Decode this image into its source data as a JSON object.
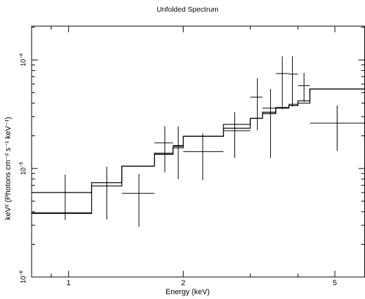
{
  "chart_data": {
    "type": "scatter",
    "title": "Unfolded Spectrum",
    "xlabel": "Energy (keV)",
    "ylabel": "keV² (Photons cm⁻² s⁻¹ keV⁻¹)",
    "xscale": "log",
    "yscale": "log",
    "xlim": [
      0.8,
      6.0
    ],
    "ylim": [
      1e-06,
      0.000205
    ],
    "xticks": [
      {
        "value": 1,
        "label": "1"
      },
      {
        "value": 2,
        "label": "2"
      },
      {
        "value": 5,
        "label": "5"
      }
    ],
    "yticks": [
      {
        "value": 1e-06,
        "base": "10",
        "exp": "−6"
      },
      {
        "value": 1e-05,
        "base": "10",
        "exp": "−5"
      },
      {
        "value": 0.0001,
        "base": "10",
        "exp": "−4"
      }
    ],
    "grid": false,
    "series": [
      {
        "kind": "errorbars",
        "points": [
          {
            "xlo": 0.8,
            "x": 0.98,
            "xhi": 1.15,
            "y": 3.9e-06,
            "ylo": 3.35e-06,
            "yhi": 8.8e-06
          },
          {
            "xlo": 1.15,
            "x": 1.26,
            "xhi": 1.38,
            "y": 6.9e-06,
            "ylo": 3.4e-06,
            "yhi": 1.04e-05
          },
          {
            "xlo": 1.38,
            "x": 1.53,
            "xhi": 1.68,
            "y": 5.9e-06,
            "ylo": 2.9e-06,
            "yhi": 8.9e-06
          },
          {
            "xlo": 1.68,
            "x": 1.79,
            "xhi": 1.88,
            "y": 1.72e-05,
            "ylo": 9.2e-06,
            "yhi": 2.45e-05
          },
          {
            "xlo": 1.88,
            "x": 1.94,
            "xhi": 2.0,
            "y": 1.63e-05,
            "ylo": 8e-06,
            "yhi": 2.45e-05
          },
          {
            "xlo": 2.0,
            "x": 2.25,
            "xhi": 2.55,
            "y": 1.43e-05,
            "ylo": 7.8e-06,
            "yhi": 2.1e-05
          },
          {
            "xlo": 2.55,
            "x": 2.73,
            "xhi": 3.0,
            "y": 2.23e-05,
            "ylo": 1.25e-05,
            "yhi": 3.3e-05
          },
          {
            "xlo": 3.0,
            "x": 3.13,
            "xhi": 3.23,
            "y": 4.55e-05,
            "ylo": 2.25e-05,
            "yhi": 6.8e-05
          },
          {
            "xlo": 3.23,
            "x": 3.39,
            "xhi": 3.5,
            "y": 3.6e-05,
            "ylo": 1.25e-05,
            "yhi": 5.4e-05
          },
          {
            "xlo": 3.5,
            "x": 3.64,
            "xhi": 3.79,
            "y": 7.5e-05,
            "ylo": 3.5e-05,
            "yhi": 0.000108
          },
          {
            "xlo": 3.79,
            "x": 3.87,
            "xhi": 4.0,
            "y": 7.4e-05,
            "ylo": 3.7e-05,
            "yhi": 0.000108
          },
          {
            "xlo": 4.0,
            "x": 4.15,
            "xhi": 4.3,
            "y": 5.8e-05,
            "ylo": 4.1e-05,
            "yhi": 7.6e-05
          },
          {
            "xlo": 4.3,
            "x": 5.07,
            "xhi": 6.0,
            "y": 2.62e-05,
            "ylo": 1.45e-05,
            "yhi": 3.8e-05
          }
        ]
      },
      {
        "kind": "step-model",
        "edges": [
          0.8,
          1.15,
          1.38,
          1.68,
          1.88,
          2.0,
          2.55,
          3.0,
          3.23,
          3.5,
          3.79,
          4.0,
          4.3,
          6.0
        ],
        "values": [
          6e-06,
          7.4e-06,
          1.05e-05,
          1.38e-05,
          1.6e-05,
          1.98e-05,
          2.55e-05,
          2.9e-05,
          3.3e-05,
          3.65e-05,
          3.9e-05,
          4.2e-05,
          5.4e-05
        ]
      },
      {
        "kind": "step-model",
        "edges": [
          0.8,
          1.15,
          1.38,
          1.68,
          1.88,
          2.0,
          2.55,
          3.0,
          3.23,
          3.5,
          3.79,
          4.0,
          4.3,
          6.0
        ],
        "values": [
          3.85e-06,
          6.9e-06,
          1.05e-05,
          1.35e-05,
          1.55e-05,
          1.98e-05,
          2.35e-05,
          2.9e-05,
          3.2e-05,
          3.6e-05,
          3.8e-05,
          4e-05,
          5.4e-05
        ]
      }
    ]
  }
}
